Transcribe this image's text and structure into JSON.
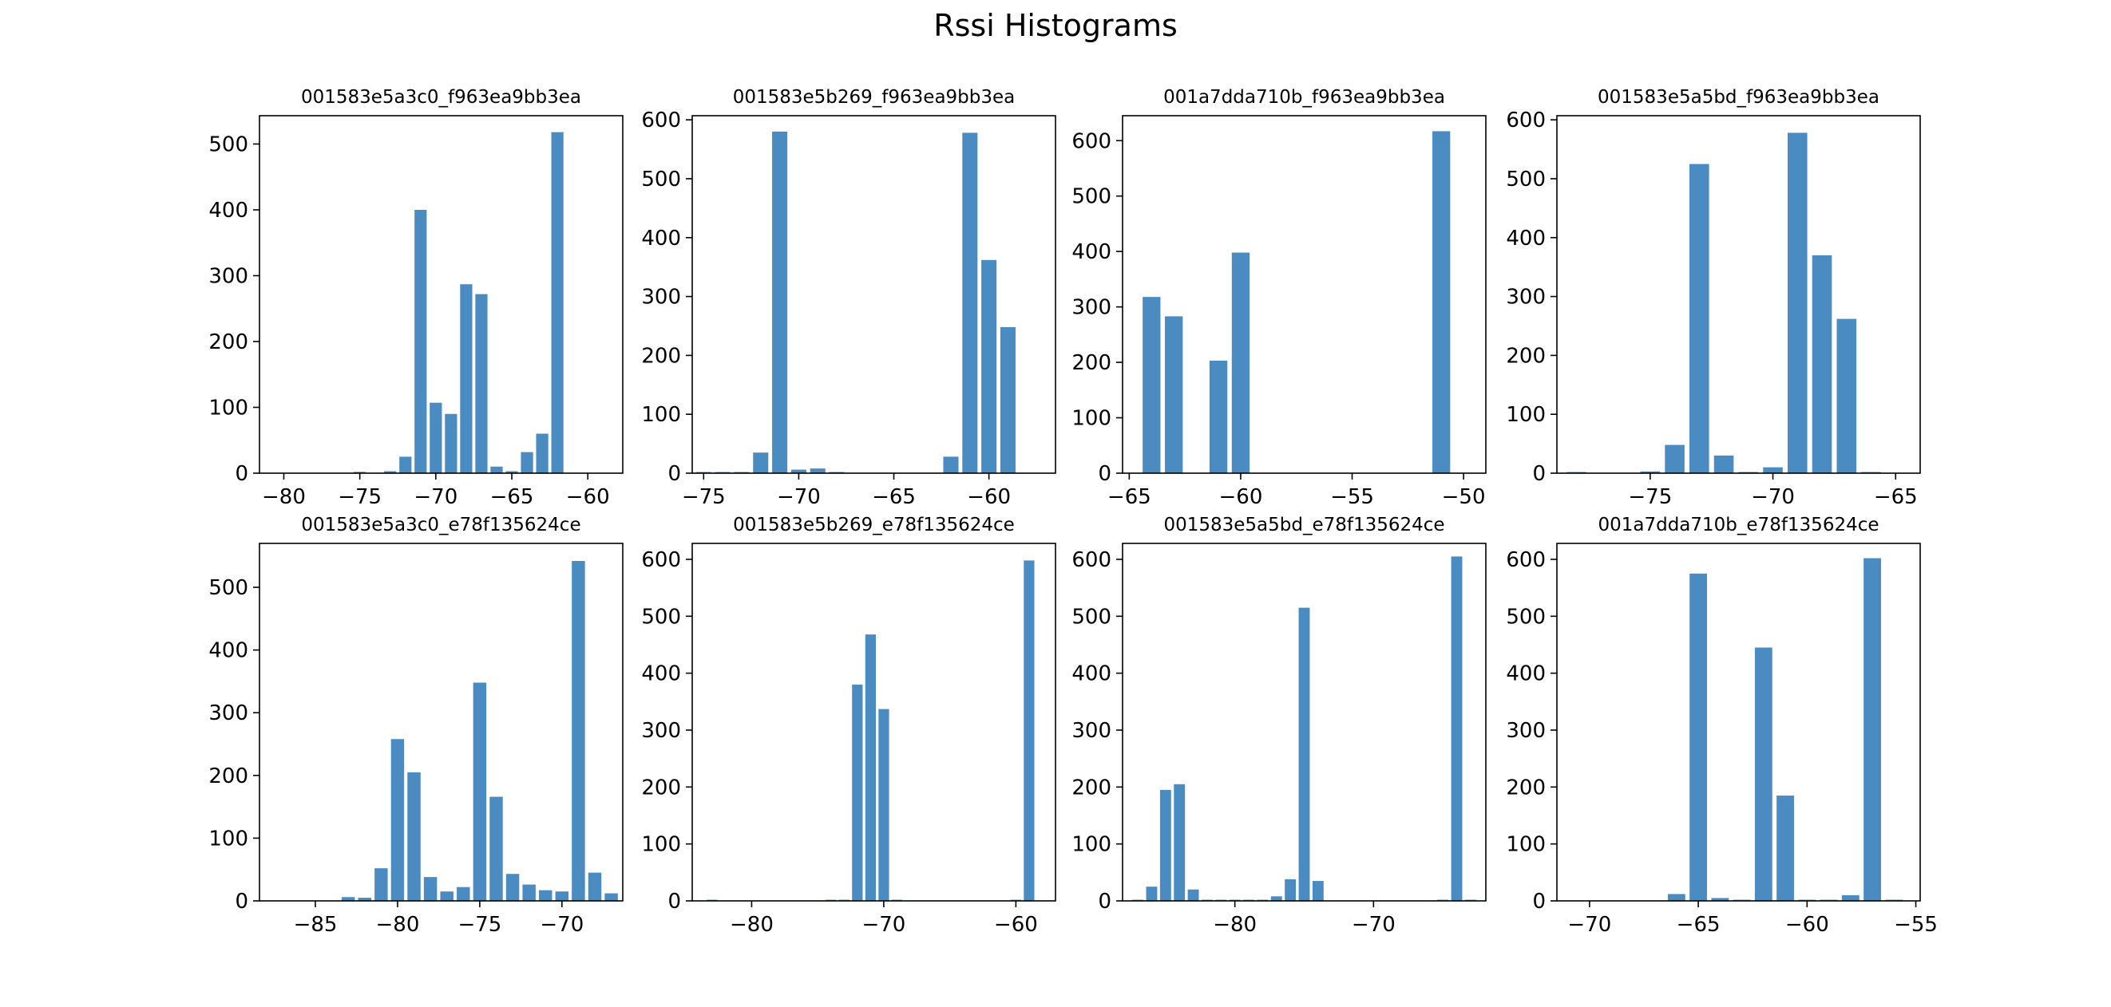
{
  "figure": {
    "suptitle": "Rssi Histograms",
    "bar_color": "#4a8cc2"
  },
  "chart_data": [
    {
      "type": "bar",
      "title": "001583e5a3c0_f963ea9bb3ea",
      "x": [
        -80,
        -79,
        -78,
        -77,
        -76,
        -75,
        -74,
        -73,
        -72,
        -71,
        -70,
        -69,
        -68,
        -67,
        -66,
        -65,
        -64,
        -63,
        -62,
        -61,
        -60,
        -59
      ],
      "values": [
        0,
        0,
        0,
        0,
        0,
        2,
        0,
        3,
        25,
        400,
        107,
        90,
        287,
        272,
        10,
        3,
        32,
        60,
        518,
        0,
        0,
        0
      ],
      "xticks": [
        -80,
        -75,
        -70,
        -65,
        -60
      ],
      "yticks": [
        0,
        100,
        200,
        300,
        400,
        500
      ],
      "xlim": [
        -81.6,
        -57.7
      ],
      "ylim": [
        0,
        543
      ]
    },
    {
      "type": "bar",
      "title": "001583e5b269_f963ea9bb3ea",
      "x": [
        -75,
        -74,
        -73,
        -72,
        -71,
        -70,
        -69,
        -68,
        -67,
        -66,
        -65,
        -64,
        -63,
        -62,
        -61,
        -60,
        -59,
        -58
      ],
      "values": [
        2,
        2,
        2,
        35,
        580,
        6,
        8,
        2,
        0,
        0,
        0,
        0,
        0,
        28,
        578,
        362,
        248,
        0
      ],
      "xticks": [
        -75,
        -70,
        -65,
        -60
      ],
      "yticks": [
        0,
        100,
        200,
        300,
        400,
        500,
        600
      ],
      "xlim": [
        -75.6,
        -56.5
      ],
      "ylim": [
        0,
        607
      ]
    },
    {
      "type": "bar",
      "title": "001a7dda710b_f963ea9bb3ea",
      "x": [
        -64,
        -63,
        -62,
        -61,
        -60,
        -59,
        -58,
        -57,
        -56,
        -55,
        -54,
        -53,
        -52,
        -51,
        -50
      ],
      "values": [
        318,
        283,
        0,
        203,
        398,
        0,
        0,
        0,
        0,
        0,
        0,
        0,
        0,
        617,
        0
      ],
      "xticks": [
        -65,
        -60,
        -55,
        -50
      ],
      "yticks": [
        0,
        100,
        200,
        300,
        400,
        500,
        600
      ],
      "xlim": [
        -65.3,
        -49.0
      ],
      "ylim": [
        0,
        645
      ]
    },
    {
      "type": "bar",
      "title": "001583e5a5bd_f963ea9bb3ea",
      "x": [
        -78,
        -77,
        -76,
        -75,
        -74,
        -73,
        -72,
        -71,
        -70,
        -69,
        -68,
        -67,
        -66,
        -65
      ],
      "values": [
        2,
        0,
        0,
        3,
        48,
        525,
        30,
        2,
        10,
        578,
        370,
        262,
        2,
        0
      ],
      "xticks": [
        -75,
        -70,
        -65
      ],
      "yticks": [
        0,
        100,
        200,
        300,
        400,
        500,
        600
      ],
      "xlim": [
        -78.8,
        -64.0
      ],
      "ylim": [
        0,
        607
      ]
    },
    {
      "type": "bar",
      "title": "001583e5a3c0_e78f135624ce",
      "x": [
        -88,
        -87,
        -86,
        -85,
        -84,
        -83,
        -82,
        -81,
        -80,
        -79,
        -78,
        -77,
        -76,
        -75,
        -74,
        -73,
        -72,
        -71,
        -70,
        -69,
        -68,
        -67
      ],
      "values": [
        0,
        0,
        0,
        0,
        0,
        6,
        5,
        52,
        258,
        205,
        38,
        15,
        22,
        348,
        166,
        43,
        26,
        17,
        15,
        542,
        45,
        12
      ],
      "xticks": [
        -85,
        -80,
        -75,
        -70
      ],
      "yticks": [
        0,
        100,
        200,
        300,
        400,
        500
      ],
      "xlim": [
        -88.4,
        -66.3
      ],
      "ylim": [
        0,
        570
      ]
    },
    {
      "type": "bar",
      "title": "001583e5b269_e78f135624ce",
      "x": [
        -83,
        -82,
        -81,
        -80,
        -79,
        -78,
        -77,
        -76,
        -75,
        -74,
        -73,
        -72,
        -71,
        -70,
        -69,
        -68,
        -67,
        -66,
        -65,
        -64,
        -63,
        -62,
        -61,
        -60,
        -59,
        -58
      ],
      "values": [
        2,
        0,
        0,
        0,
        0,
        0,
        0,
        0,
        0,
        2,
        2,
        380,
        468,
        337,
        2,
        0,
        0,
        0,
        0,
        0,
        0,
        0,
        0,
        2,
        598,
        0
      ],
      "xticks": [
        -80,
        -70,
        -60
      ],
      "yticks": [
        0,
        100,
        200,
        300,
        400,
        500,
        600
      ],
      "xlim": [
        -84.5,
        -57.0
      ],
      "ylim": [
        0,
        628
      ]
    },
    {
      "type": "bar",
      "title": "001583e5a5bd_e78f135624ce",
      "x": [
        -87,
        -86,
        -85,
        -84,
        -83,
        -82,
        -81,
        -80,
        -79,
        -78,
        -77,
        -76,
        -75,
        -74,
        -73,
        -72,
        -71,
        -70,
        -69,
        -68,
        -67,
        -66,
        -65,
        -64,
        -63
      ],
      "values": [
        2,
        25,
        195,
        205,
        20,
        2,
        2,
        2,
        2,
        2,
        8,
        38,
        515,
        35,
        0,
        0,
        0,
        0,
        0,
        0,
        0,
        0,
        2,
        605,
        2
      ],
      "xticks": [
        -80,
        -70
      ],
      "yticks": [
        0,
        100,
        200,
        300,
        400,
        500,
        600
      ],
      "xlim": [
        -88.1,
        -61.9
      ],
      "ylim": [
        0,
        628
      ]
    },
    {
      "type": "bar",
      "title": "001a7dda710b_e78f135624ce",
      "x": [
        -71,
        -70,
        -69,
        -68,
        -67,
        -66,
        -65,
        -64,
        -63,
        -62,
        -61,
        -60,
        -59,
        -58,
        -57,
        -56
      ],
      "values": [
        0,
        0,
        0,
        0,
        0,
        12,
        575,
        5,
        2,
        445,
        185,
        2,
        2,
        10,
        602,
        2
      ],
      "xticks": [
        -70,
        -65,
        -60,
        -55
      ],
      "yticks": [
        0,
        100,
        200,
        300,
        400,
        500,
        600
      ],
      "xlim": [
        -71.5,
        -54.8
      ],
      "ylim": [
        0,
        628
      ]
    }
  ]
}
